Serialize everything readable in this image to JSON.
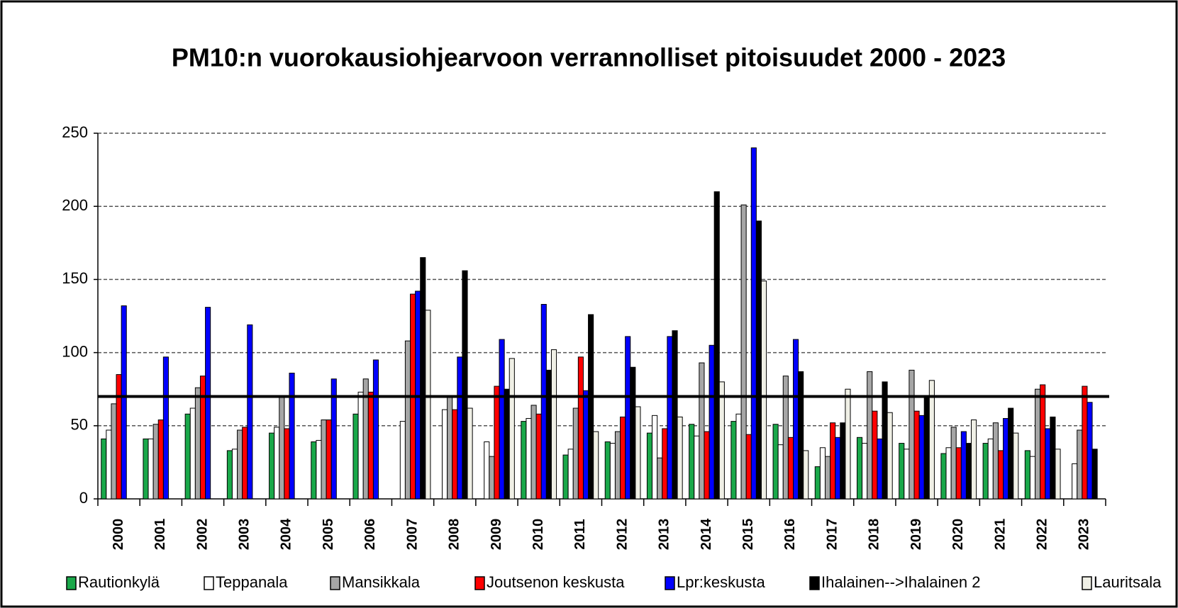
{
  "chart_data": {
    "type": "bar",
    "title": "PM10:n vuorokausiohjearvoon verrannolliset pitoisuudet 2000 - 2023",
    "categories": [
      "2000",
      "2001",
      "2002",
      "2003",
      "2004",
      "2005",
      "2006",
      "2007",
      "2008",
      "2009",
      "2010",
      "2011",
      "2012",
      "2013",
      "2014",
      "2015",
      "2016",
      "2017",
      "2018",
      "2019",
      "2020",
      "2021",
      "2022",
      "2023"
    ],
    "series": [
      {
        "name": "Rautionkylä",
        "color": "#1aa84a",
        "values": [
          41,
          41,
          58,
          33,
          45,
          39,
          58,
          null,
          null,
          null,
          53,
          30,
          39,
          45,
          51,
          53,
          51,
          22,
          42,
          38,
          31,
          38,
          33,
          null
        ]
      },
      {
        "name": "Teppanala",
        "color": "#ffffff",
        "values": [
          47,
          41,
          62,
          34,
          49,
          40,
          73,
          53,
          61,
          39,
          55,
          34,
          38,
          57,
          43,
          58,
          37,
          35,
          38,
          34,
          35,
          41,
          29,
          24
        ]
      },
      {
        "name": "Mansikkala",
        "color": "#a6a6a6",
        "values": [
          65,
          51,
          76,
          47,
          70,
          54,
          82,
          108,
          70,
          29,
          64,
          62,
          46,
          28,
          93,
          201,
          84,
          29,
          87,
          88,
          49,
          52,
          75,
          47
        ]
      },
      {
        "name": "Joutsenon keskusta",
        "color": "#ff0000",
        "values": [
          85,
          54,
          84,
          49,
          48,
          54,
          73,
          140,
          61,
          77,
          58,
          97,
          56,
          48,
          46,
          44,
          42,
          52,
          60,
          60,
          35,
          33,
          78,
          77
        ]
      },
      {
        "name": "Lpr:keskusta",
        "color": "#0000ff",
        "values": [
          132,
          97,
          131,
          119,
          86,
          82,
          95,
          142,
          97,
          109,
          133,
          74,
          111,
          111,
          105,
          240,
          109,
          42,
          41,
          57,
          46,
          55,
          48,
          66
        ]
      },
      {
        "name": "Ihalainen-->Ihalainen 2",
        "color": "#000000",
        "values": [
          null,
          null,
          null,
          null,
          null,
          null,
          null,
          165,
          156,
          75,
          88,
          126,
          90,
          115,
          210,
          190,
          87,
          52,
          80,
          70,
          38,
          62,
          56,
          34
        ]
      },
      {
        "name": "Lauritsala",
        "color": "#f0f0e6",
        "values": [
          null,
          null,
          null,
          null,
          null,
          null,
          null,
          129,
          62,
          96,
          102,
          46,
          63,
          56,
          80,
          149,
          33,
          75,
          59,
          81,
          54,
          45,
          34,
          null
        ]
      }
    ],
    "reference_line": 70,
    "ylim": [
      0,
      250
    ],
    "yticks": [
      0,
      50,
      100,
      150,
      200,
      250
    ],
    "grid": true,
    "legend": "bottom"
  }
}
